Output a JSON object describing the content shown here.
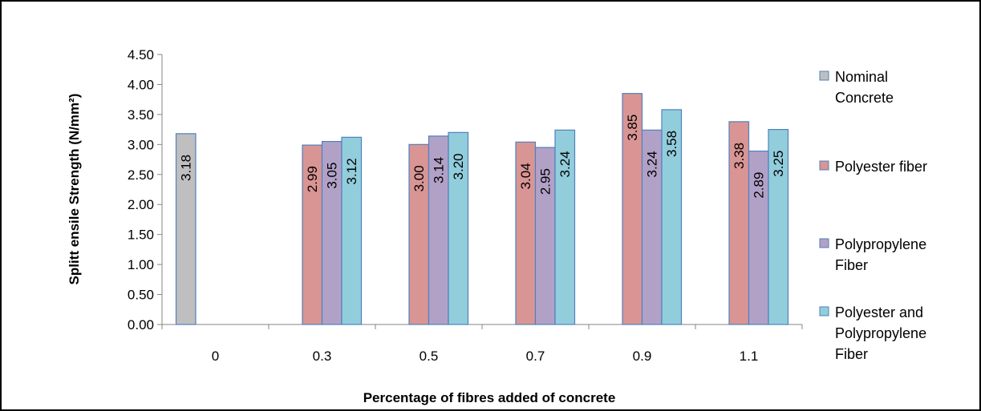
{
  "chart_data": {
    "type": "bar",
    "title": "",
    "xlabel": "Percentage of fibres added of concrete",
    "ylabel": "Splitt ensile Strength (N/mm²)",
    "ylim": [
      0,
      4.5
    ],
    "y_ticks": [
      "0.00",
      "0.50",
      "1.00",
      "1.50",
      "2.00",
      "2.50",
      "3.00",
      "3.50",
      "4.00",
      "4.50"
    ],
    "categories": [
      "0",
      "0.3",
      "0.5",
      "0.7",
      "0.9",
      "1.1"
    ],
    "grid": false,
    "legend_position": "right",
    "series": [
      {
        "name": "Nominal Concrete",
        "legend_lines": [
          "Nominal",
          "Concrete"
        ],
        "color": "#BFBFBF",
        "values": [
          3.18,
          null,
          null,
          null,
          null,
          null
        ],
        "labels": [
          "3.18",
          null,
          null,
          null,
          null,
          null
        ]
      },
      {
        "name": "Polyester fiber",
        "legend_lines": [
          "Polyester fiber"
        ],
        "color": "#D99594",
        "values": [
          null,
          2.99,
          3.0,
          3.04,
          3.85,
          3.38
        ],
        "labels": [
          null,
          "2.99",
          "3.00",
          "3.04",
          "3.85",
          "3.38"
        ]
      },
      {
        "name": "Polypropylene Fiber",
        "legend_lines": [
          "Polypropylene",
          "Fiber"
        ],
        "color": "#B2A1C7",
        "values": [
          null,
          3.05,
          3.14,
          2.95,
          3.24,
          2.89
        ],
        "labels": [
          null,
          "3.05",
          "3.14",
          "2.95",
          "3.24",
          "2.89"
        ]
      },
      {
        "name": "Polyester and Polypropylene Fiber",
        "legend_lines": [
          "Polyester and",
          "Polypropylene",
          "Fiber"
        ],
        "color": "#92CDDC",
        "values": [
          null,
          3.12,
          3.2,
          3.24,
          3.58,
          3.25
        ],
        "labels": [
          null,
          "3.12",
          "3.20",
          "3.24",
          "3.58",
          "3.25"
        ]
      }
    ],
    "bar_stroke": "#4F81BD"
  }
}
